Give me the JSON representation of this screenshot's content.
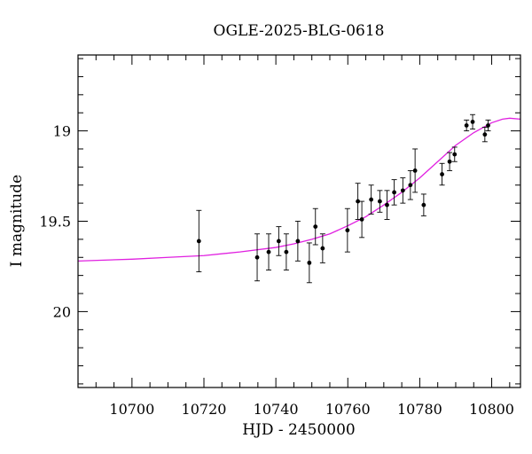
{
  "chart_data": {
    "type": "scatter",
    "title": "OGLE-2025-BLG-0618",
    "xlabel": "HJD - 2450000",
    "ylabel": "I magnitude",
    "xlim": [
      10685,
      10808
    ],
    "ylim": [
      20.42,
      18.58
    ],
    "y_inverted": true,
    "grid": false,
    "xticks": [
      10700,
      10720,
      10740,
      10760,
      10780,
      10800
    ],
    "yticks": [
      19,
      19.5,
      20
    ],
    "ytick_labels": [
      "19",
      "19.5",
      "20"
    ],
    "colors": {
      "model": "#e020e0",
      "points": "#000000",
      "axes": "#000000"
    },
    "series": [
      {
        "type": "errorbar",
        "x": [
          10718.6,
          10734.8,
          10738.0,
          10740.8,
          10742.9,
          10746.1,
          10749.3,
          10751.0,
          10753.0,
          10759.9,
          10762.8,
          10763.9,
          10766.5,
          10768.9,
          10770.9,
          10772.9,
          10775.3,
          10777.4,
          10778.7,
          10781.1,
          10786.2,
          10788.3,
          10789.7,
          10793.0,
          10794.7,
          10798.1,
          10799.0
        ],
        "y": [
          19.61,
          19.7,
          19.67,
          19.61,
          19.67,
          19.61,
          19.73,
          19.53,
          19.65,
          19.55,
          19.39,
          19.49,
          19.38,
          19.39,
          19.41,
          19.34,
          19.33,
          19.3,
          19.22,
          19.41,
          19.24,
          19.17,
          19.13,
          18.97,
          18.95,
          19.02,
          18.97
        ],
        "err": [
          0.17,
          0.13,
          0.1,
          0.08,
          0.1,
          0.11,
          0.11,
          0.1,
          0.08,
          0.12,
          0.1,
          0.1,
          0.08,
          0.06,
          0.08,
          0.07,
          0.07,
          0.08,
          0.12,
          0.06,
          0.06,
          0.05,
          0.04,
          0.03,
          0.04,
          0.04,
          0.03
        ]
      },
      {
        "type": "line",
        "x": [
          10685,
          10700,
          10710,
          10720,
          10730,
          10740,
          10745,
          10750,
          10755,
          10760,
          10765,
          10770,
          10775,
          10780,
          10785,
          10790,
          10795,
          10800,
          10803,
          10805,
          10808
        ],
        "y": [
          19.72,
          19.71,
          19.7,
          19.69,
          19.67,
          19.645,
          19.625,
          19.6,
          19.57,
          19.525,
          19.475,
          19.41,
          19.34,
          19.26,
          19.17,
          19.08,
          19.01,
          18.955,
          18.935,
          18.93,
          18.935
        ]
      }
    ]
  }
}
